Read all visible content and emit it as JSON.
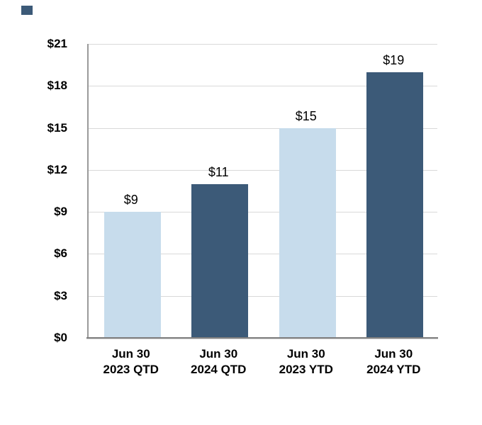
{
  "chart_data": {
    "type": "bar",
    "title": "",
    "xlabel": "",
    "ylabel": "",
    "categories": [
      [
        "Jun 30",
        "2023 QTD"
      ],
      [
        "Jun 30",
        "2024 QTD"
      ],
      [
        "Jun 30",
        "2023 YTD"
      ],
      [
        "Jun 30",
        "2024 YTD"
      ]
    ],
    "values": [
      9,
      11,
      15,
      19
    ],
    "value_labels": [
      "$9",
      "$11",
      "$15",
      "$19"
    ],
    "bar_color_keys": [
      "light",
      "dark",
      "light",
      "dark"
    ],
    "colors": {
      "light": "#C7DCEC",
      "dark": "#3C5A78",
      "gridline": "#D9D9D9",
      "axis": "#808080",
      "text": "#000000",
      "corner_chip": "#3C5A78"
    },
    "ylim": [
      0,
      21
    ],
    "y_tick_values": [
      0,
      3,
      6,
      9,
      12,
      15,
      18,
      21
    ],
    "y_tick_labels": [
      "$0",
      "$3",
      "$6",
      "$9",
      "$12",
      "$15",
      "$18",
      "$21"
    ],
    "grid": true,
    "legend": "none"
  }
}
